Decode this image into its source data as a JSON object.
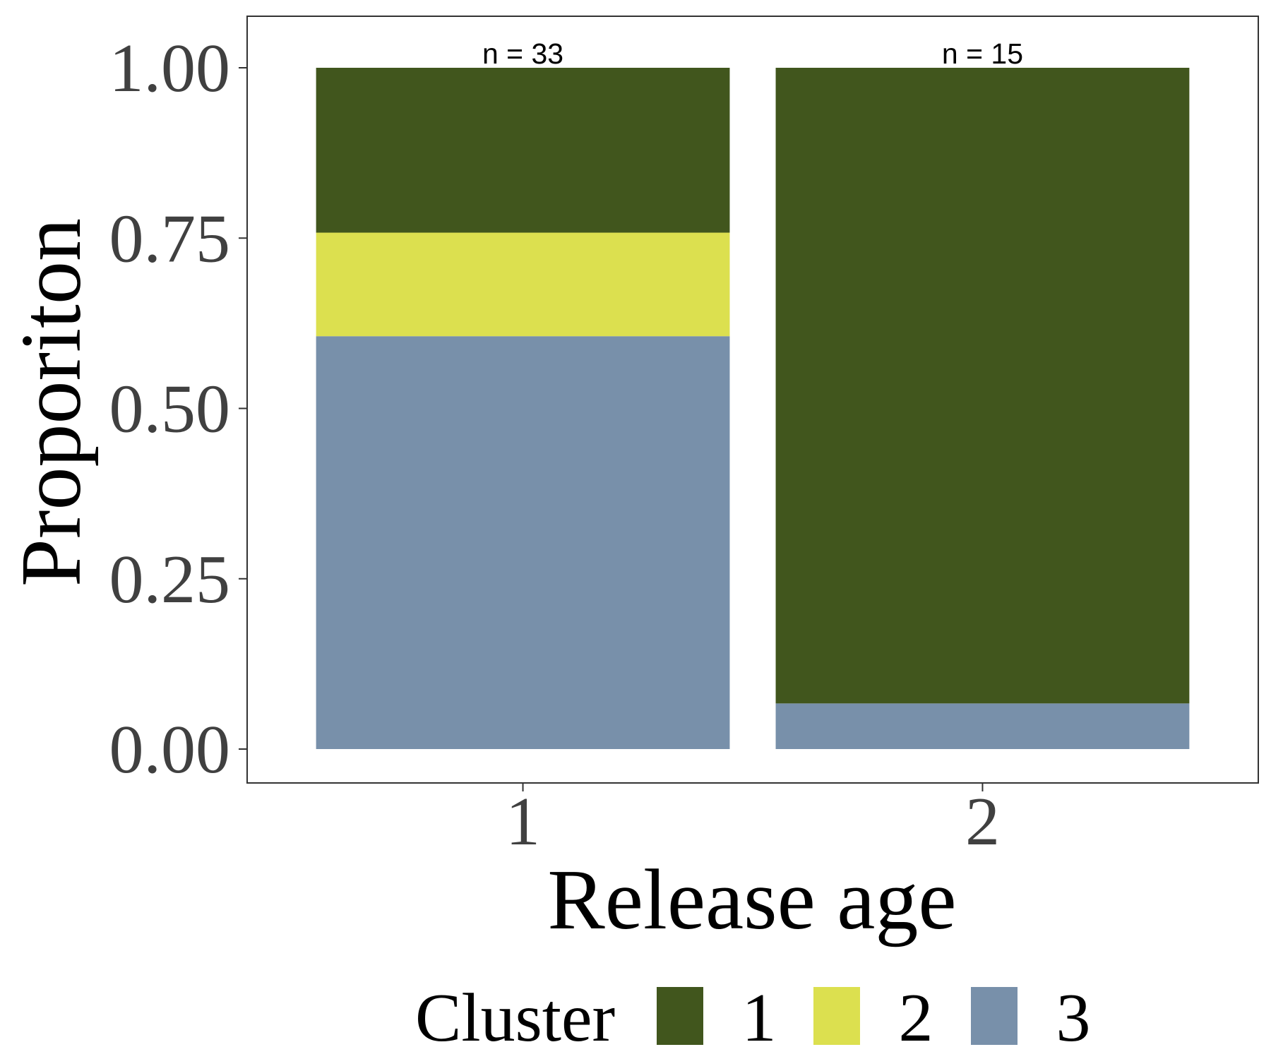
{
  "chart_data": {
    "type": "bar",
    "stacked": true,
    "categories": [
      "1",
      "2"
    ],
    "series": [
      {
        "name": "1",
        "color": "#41561d",
        "values": [
          0.242,
          0.933
        ]
      },
      {
        "name": "2",
        "color": "#dce04f",
        "values": [
          0.152,
          0.0
        ]
      },
      {
        "name": "3",
        "color": "#7890aa",
        "values": [
          0.606,
          0.067
        ]
      }
    ],
    "annotations": [
      "n = 33",
      "n = 15"
    ],
    "xlabel": "Release age",
    "ylabel": "Proporiton",
    "ylim": [
      0,
      1
    ],
    "yticks": [
      "0.00",
      "0.25",
      "0.50",
      "0.75",
      "1.00"
    ],
    "legend": {
      "title": "Cluster",
      "position": "bottom"
    },
    "grid": false
  }
}
